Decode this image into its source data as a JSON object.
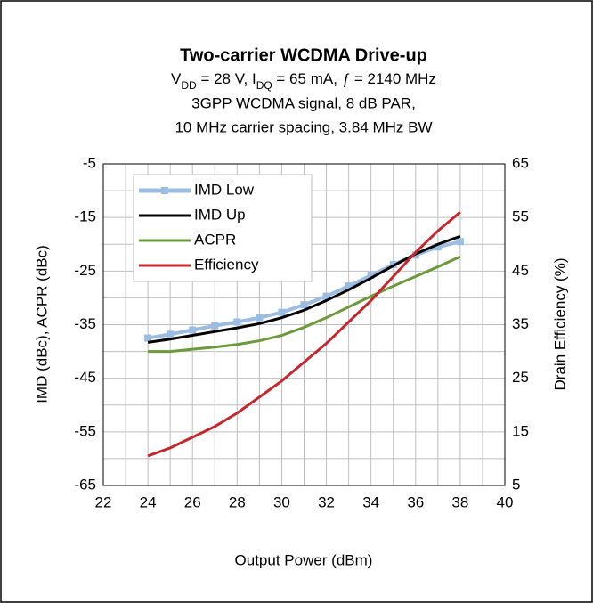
{
  "chart_data": {
    "type": "line",
    "title": "Two-carrier WCDMA Drive-up",
    "subtitle_parts": [
      "V",
      "DD",
      " = 28 V, I",
      "DQ",
      " = 65 mA, ",
      "ƒ",
      " = 2140 MHz"
    ],
    "subtitle_lines": [
      "3GPP WCDMA signal, 8 dB PAR,",
      "10 MHz carrier spacing, 3.84 MHz BW"
    ],
    "x_label": "Output Power (dBm)",
    "y_label": "IMD (dBc), ACPR (dBc)",
    "y2_label": "Drain Efficiency (%)",
    "x": [
      24,
      25,
      26,
      27,
      28,
      29,
      30,
      31,
      32,
      33,
      34,
      35,
      36,
      37,
      38
    ],
    "series": [
      {
        "name": "IMD Low",
        "color": "#9bbde3",
        "marker": "square",
        "values": [
          -37.5,
          -36.8,
          -36,
          -35.2,
          -34.5,
          -33.7,
          -32.7,
          -31.3,
          -29.7,
          -27.8,
          -25.8,
          -23.8,
          -22,
          -20.5,
          -19.5
        ]
      },
      {
        "name": "IMD Up",
        "color": "#000000",
        "values": [
          -38.3,
          -37.7,
          -37,
          -36.3,
          -35.6,
          -34.8,
          -33.7,
          -32.3,
          -30.5,
          -28.5,
          -26.3,
          -24,
          -21.8,
          -20,
          -18.5
        ]
      },
      {
        "name": "ACPR",
        "color": "#6b9a3a",
        "values": [
          -40,
          -40,
          -39.6,
          -39.2,
          -38.7,
          -38,
          -37,
          -35.5,
          -33.7,
          -31.7,
          -29.7,
          -27.8,
          -26,
          -24.2,
          -22.3
        ]
      },
      {
        "name": "Efficiency",
        "color": "#c8262c",
        "axis": "y2",
        "values": [
          10.5,
          12,
          14,
          16,
          18.5,
          21.5,
          24.5,
          28,
          31.5,
          35.5,
          39.5,
          44,
          48.5,
          52.5,
          56
        ]
      }
    ],
    "xlim": [
      22,
      40
    ],
    "xticks": [
      22,
      24,
      26,
      28,
      30,
      32,
      34,
      36,
      38,
      40
    ],
    "x_minor_ticks": [
      23,
      25,
      27,
      29,
      31,
      33,
      35,
      37,
      39
    ],
    "ylim": [
      -65,
      -5
    ],
    "yticks": [
      -65,
      -55,
      -45,
      -35,
      -25,
      -15,
      -5
    ],
    "y_minor_ticks": [
      -60,
      -50,
      -40,
      -30,
      -20,
      -10
    ],
    "y2lim": [
      5,
      65
    ],
    "y2ticks": [
      5,
      15,
      25,
      35,
      45,
      55,
      65
    ],
    "grid": true,
    "legend": "upper left"
  }
}
